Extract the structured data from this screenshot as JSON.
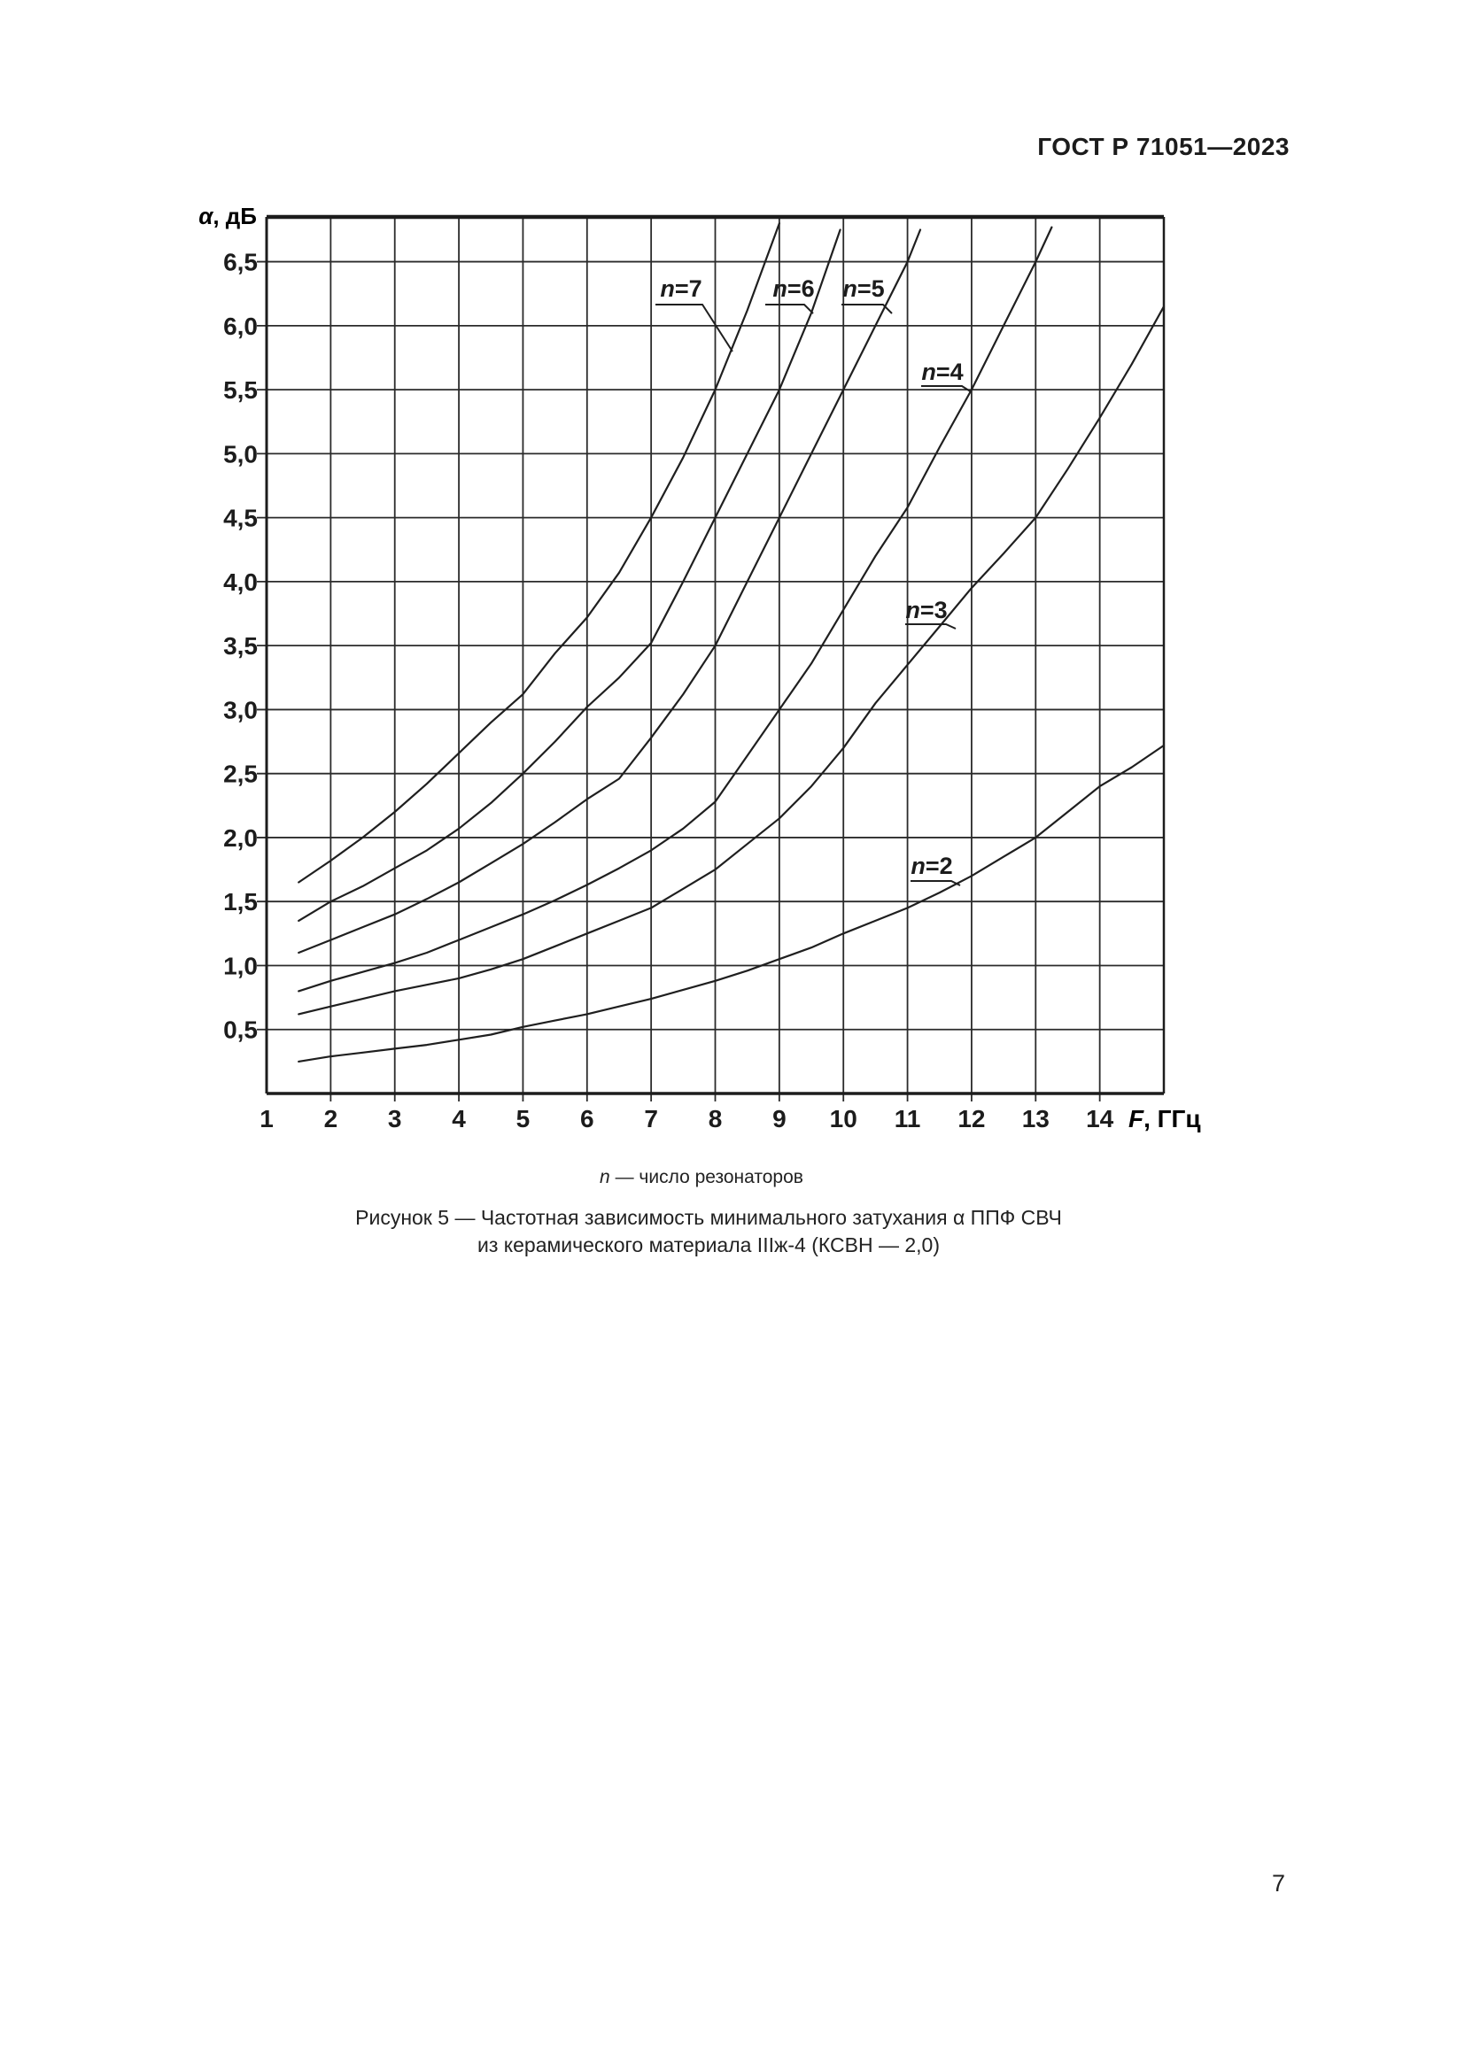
{
  "page": {
    "header": "ГОСТ Р 71051—2023",
    "page_number": "7"
  },
  "caption": {
    "note": "n — число резонаторов",
    "note_var": "n",
    "note_rest": " — число резонаторов",
    "line2": "Рисунок 5 — Частотная зависимость минимального затухания α ППФ СВЧ",
    "line3": "из керамического материала IIIж-4 (КСВН — 2,0)"
  },
  "chart_data": {
    "type": "line",
    "title": "Рисунок 5 — Частотная зависимость минимального затухания α ППФ СВЧ из керамического материала IIIж-4 (КСВН — 2,0)",
    "ylabel": "α, дБ",
    "ylabel_var": "α",
    "ylabel_rest": ", дБ",
    "xlabel": "F, ГГц",
    "xlabel_var": "F",
    "xlabel_rest": ", ГГц",
    "legend_note": "n — число резонаторов",
    "xlim": [
      1,
      15
    ],
    "ylim": [
      0,
      6.85
    ],
    "grid": true,
    "ink_color": "#1f1f1f",
    "x_ticks": [
      {
        "v": 1,
        "label": "1"
      },
      {
        "v": 2,
        "label": "2"
      },
      {
        "v": 3,
        "label": "3"
      },
      {
        "v": 4,
        "label": "4"
      },
      {
        "v": 5,
        "label": "5"
      },
      {
        "v": 6,
        "label": "6"
      },
      {
        "v": 7,
        "label": "7"
      },
      {
        "v": 8,
        "label": "8"
      },
      {
        "v": 9,
        "label": "9"
      },
      {
        "v": 10,
        "label": "10"
      },
      {
        "v": 11,
        "label": "11"
      },
      {
        "v": 12,
        "label": "12"
      },
      {
        "v": 13,
        "label": "13"
      },
      {
        "v": 14,
        "label": "14"
      }
    ],
    "y_ticks": [
      {
        "v": 0.5,
        "label": "0,5"
      },
      {
        "v": 1.0,
        "label": "1,0"
      },
      {
        "v": 1.5,
        "label": "1,5"
      },
      {
        "v": 2.0,
        "label": "2,0"
      },
      {
        "v": 2.5,
        "label": "2,5"
      },
      {
        "v": 3.0,
        "label": "3,0"
      },
      {
        "v": 3.5,
        "label": "3,5"
      },
      {
        "v": 4.0,
        "label": "4,0"
      },
      {
        "v": 4.5,
        "label": "4,5"
      },
      {
        "v": 5.0,
        "label": "5,0"
      },
      {
        "v": 5.5,
        "label": "5,5"
      },
      {
        "v": 6.0,
        "label": "6,0"
      },
      {
        "v": 6.5,
        "label": "6,5"
      }
    ],
    "series": [
      {
        "name": "n=7",
        "name_var": "n",
        "name_rest": "=7",
        "points": [
          [
            1.5,
            1.65
          ],
          [
            2,
            1.82
          ],
          [
            2.5,
            2.0
          ],
          [
            3,
            2.2
          ],
          [
            3.5,
            2.42
          ],
          [
            4,
            2.66
          ],
          [
            4.5,
            2.9
          ],
          [
            5,
            3.12
          ],
          [
            5.5,
            3.44
          ],
          [
            6,
            3.72
          ],
          [
            6.5,
            4.07
          ],
          [
            7,
            4.5
          ],
          [
            7.5,
            4.97
          ],
          [
            8,
            5.5
          ],
          [
            8.5,
            6.12
          ],
          [
            9,
            6.8
          ]
        ]
      },
      {
        "name": "n=6",
        "name_var": "n",
        "name_rest": "=6",
        "points": [
          [
            1.5,
            1.35
          ],
          [
            2,
            1.5
          ],
          [
            2.5,
            1.62
          ],
          [
            3,
            1.76
          ],
          [
            3.5,
            1.9
          ],
          [
            4,
            2.07
          ],
          [
            4.5,
            2.27
          ],
          [
            5,
            2.5
          ],
          [
            5.5,
            2.75
          ],
          [
            6,
            3.02
          ],
          [
            6.5,
            3.25
          ],
          [
            7,
            3.52
          ],
          [
            7.5,
            4.0
          ],
          [
            8,
            4.5
          ],
          [
            8.5,
            5.0
          ],
          [
            9,
            5.5
          ],
          [
            9.5,
            6.1
          ],
          [
            9.95,
            6.75
          ]
        ]
      },
      {
        "name": "n=5",
        "name_var": "n",
        "name_rest": "=5",
        "points": [
          [
            1.5,
            1.1
          ],
          [
            2,
            1.2
          ],
          [
            2.5,
            1.3
          ],
          [
            3,
            1.4
          ],
          [
            3.5,
            1.52
          ],
          [
            4,
            1.65
          ],
          [
            4.5,
            1.8
          ],
          [
            5,
            1.95
          ],
          [
            5.5,
            2.12
          ],
          [
            6,
            2.3
          ],
          [
            6.5,
            2.46
          ],
          [
            7,
            2.78
          ],
          [
            7.5,
            3.12
          ],
          [
            8,
            3.5
          ],
          [
            8.5,
            4.0
          ],
          [
            9,
            4.5
          ],
          [
            9.5,
            5.0
          ],
          [
            10,
            5.5
          ],
          [
            10.5,
            6.0
          ],
          [
            11,
            6.5
          ],
          [
            11.2,
            6.75
          ]
        ]
      },
      {
        "name": "n=4",
        "name_var": "n",
        "name_rest": "=4",
        "points": [
          [
            1.5,
            0.8
          ],
          [
            2,
            0.88
          ],
          [
            2.5,
            0.95
          ],
          [
            3,
            1.02
          ],
          [
            3.5,
            1.1
          ],
          [
            4,
            1.2
          ],
          [
            4.5,
            1.3
          ],
          [
            5,
            1.4
          ],
          [
            5.5,
            1.51
          ],
          [
            6,
            1.63
          ],
          [
            6.5,
            1.76
          ],
          [
            7,
            1.9
          ],
          [
            7.5,
            2.07
          ],
          [
            8,
            2.28
          ],
          [
            8.5,
            2.64
          ],
          [
            9,
            3.0
          ],
          [
            9.5,
            3.36
          ],
          [
            10,
            3.78
          ],
          [
            10.5,
            4.2
          ],
          [
            11,
            4.58
          ],
          [
            11.5,
            5.05
          ],
          [
            12,
            5.5
          ],
          [
            12.5,
            6.0
          ],
          [
            13,
            6.5
          ],
          [
            13.25,
            6.77
          ]
        ]
      },
      {
        "name": "n=3",
        "name_var": "n",
        "name_rest": "=3",
        "points": [
          [
            1.5,
            0.62
          ],
          [
            2,
            0.68
          ],
          [
            2.5,
            0.74
          ],
          [
            3,
            0.8
          ],
          [
            3.5,
            0.85
          ],
          [
            4,
            0.9
          ],
          [
            4.5,
            0.97
          ],
          [
            5,
            1.05
          ],
          [
            5.5,
            1.15
          ],
          [
            6,
            1.25
          ],
          [
            6.5,
            1.35
          ],
          [
            7,
            1.45
          ],
          [
            7.5,
            1.6
          ],
          [
            8,
            1.75
          ],
          [
            8.5,
            1.95
          ],
          [
            9,
            2.15
          ],
          [
            9.5,
            2.4
          ],
          [
            10,
            2.7
          ],
          [
            10.5,
            3.05
          ],
          [
            11,
            3.35
          ],
          [
            11.5,
            3.65
          ],
          [
            12,
            3.95
          ],
          [
            12.5,
            4.22
          ],
          [
            13,
            4.5
          ],
          [
            13.5,
            4.88
          ],
          [
            14,
            5.28
          ],
          [
            14.5,
            5.7
          ],
          [
            15,
            6.15
          ]
        ]
      },
      {
        "name": "n=2",
        "name_var": "n",
        "name_rest": "=2",
        "points": [
          [
            1.5,
            0.25
          ],
          [
            2,
            0.29
          ],
          [
            2.5,
            0.32
          ],
          [
            3,
            0.35
          ],
          [
            3.5,
            0.38
          ],
          [
            4,
            0.42
          ],
          [
            4.5,
            0.46
          ],
          [
            5,
            0.52
          ],
          [
            5.5,
            0.57
          ],
          [
            6,
            0.62
          ],
          [
            6.5,
            0.68
          ],
          [
            7,
            0.74
          ],
          [
            7.5,
            0.81
          ],
          [
            8,
            0.88
          ],
          [
            8.5,
            0.96
          ],
          [
            9,
            1.05
          ],
          [
            9.5,
            1.14
          ],
          [
            10,
            1.25
          ],
          [
            10.5,
            1.35
          ],
          [
            11,
            1.45
          ],
          [
            11.5,
            1.57
          ],
          [
            12,
            1.7
          ],
          [
            12.5,
            1.85
          ],
          [
            13,
            2.0
          ],
          [
            13.5,
            2.2
          ],
          [
            14,
            2.4
          ],
          [
            14.5,
            2.55
          ],
          [
            15,
            2.72
          ]
        ]
      }
    ]
  }
}
